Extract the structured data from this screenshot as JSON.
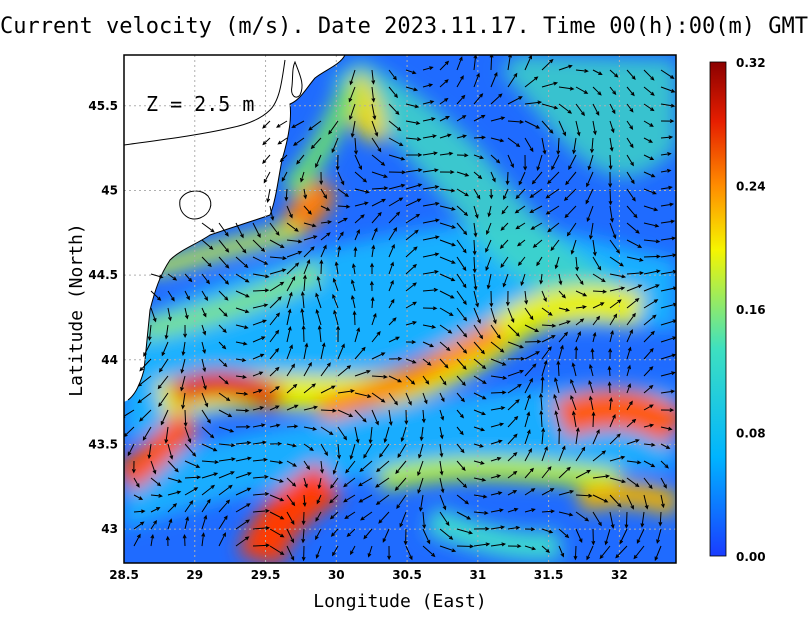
{
  "title": "Current velocity (m/s). Date 2023.11.17. Time 00(h):00(m) GMT",
  "depth_label": "Z = 2.5 m",
  "x_axis": {
    "label": "Longitude (East)",
    "ticks": [
      "28.5",
      "29",
      "29.5",
      "30",
      "30.5",
      "31",
      "31.5",
      "32"
    ],
    "range": [
      28.5,
      32.4
    ]
  },
  "y_axis": {
    "label": "Latitude (North)",
    "ticks": [
      "43",
      "43.5",
      "44",
      "44.5",
      "45",
      "45.5"
    ],
    "range": [
      42.8,
      45.8
    ]
  },
  "colorbar": {
    "ticks": [
      "0.00",
      "0.08",
      "0.16",
      "0.24",
      "0.32"
    ],
    "range": [
      0,
      0.32
    ],
    "colors": [
      "#1a3cff",
      "#00b4ff",
      "#3ee0c0",
      "#f5f500",
      "#ff8c00",
      "#e61e00",
      "#8b0000"
    ]
  },
  "grid": "dotted",
  "colors": {
    "land": "#ffffff",
    "coast": "#000000",
    "vectors": "#000000"
  }
}
